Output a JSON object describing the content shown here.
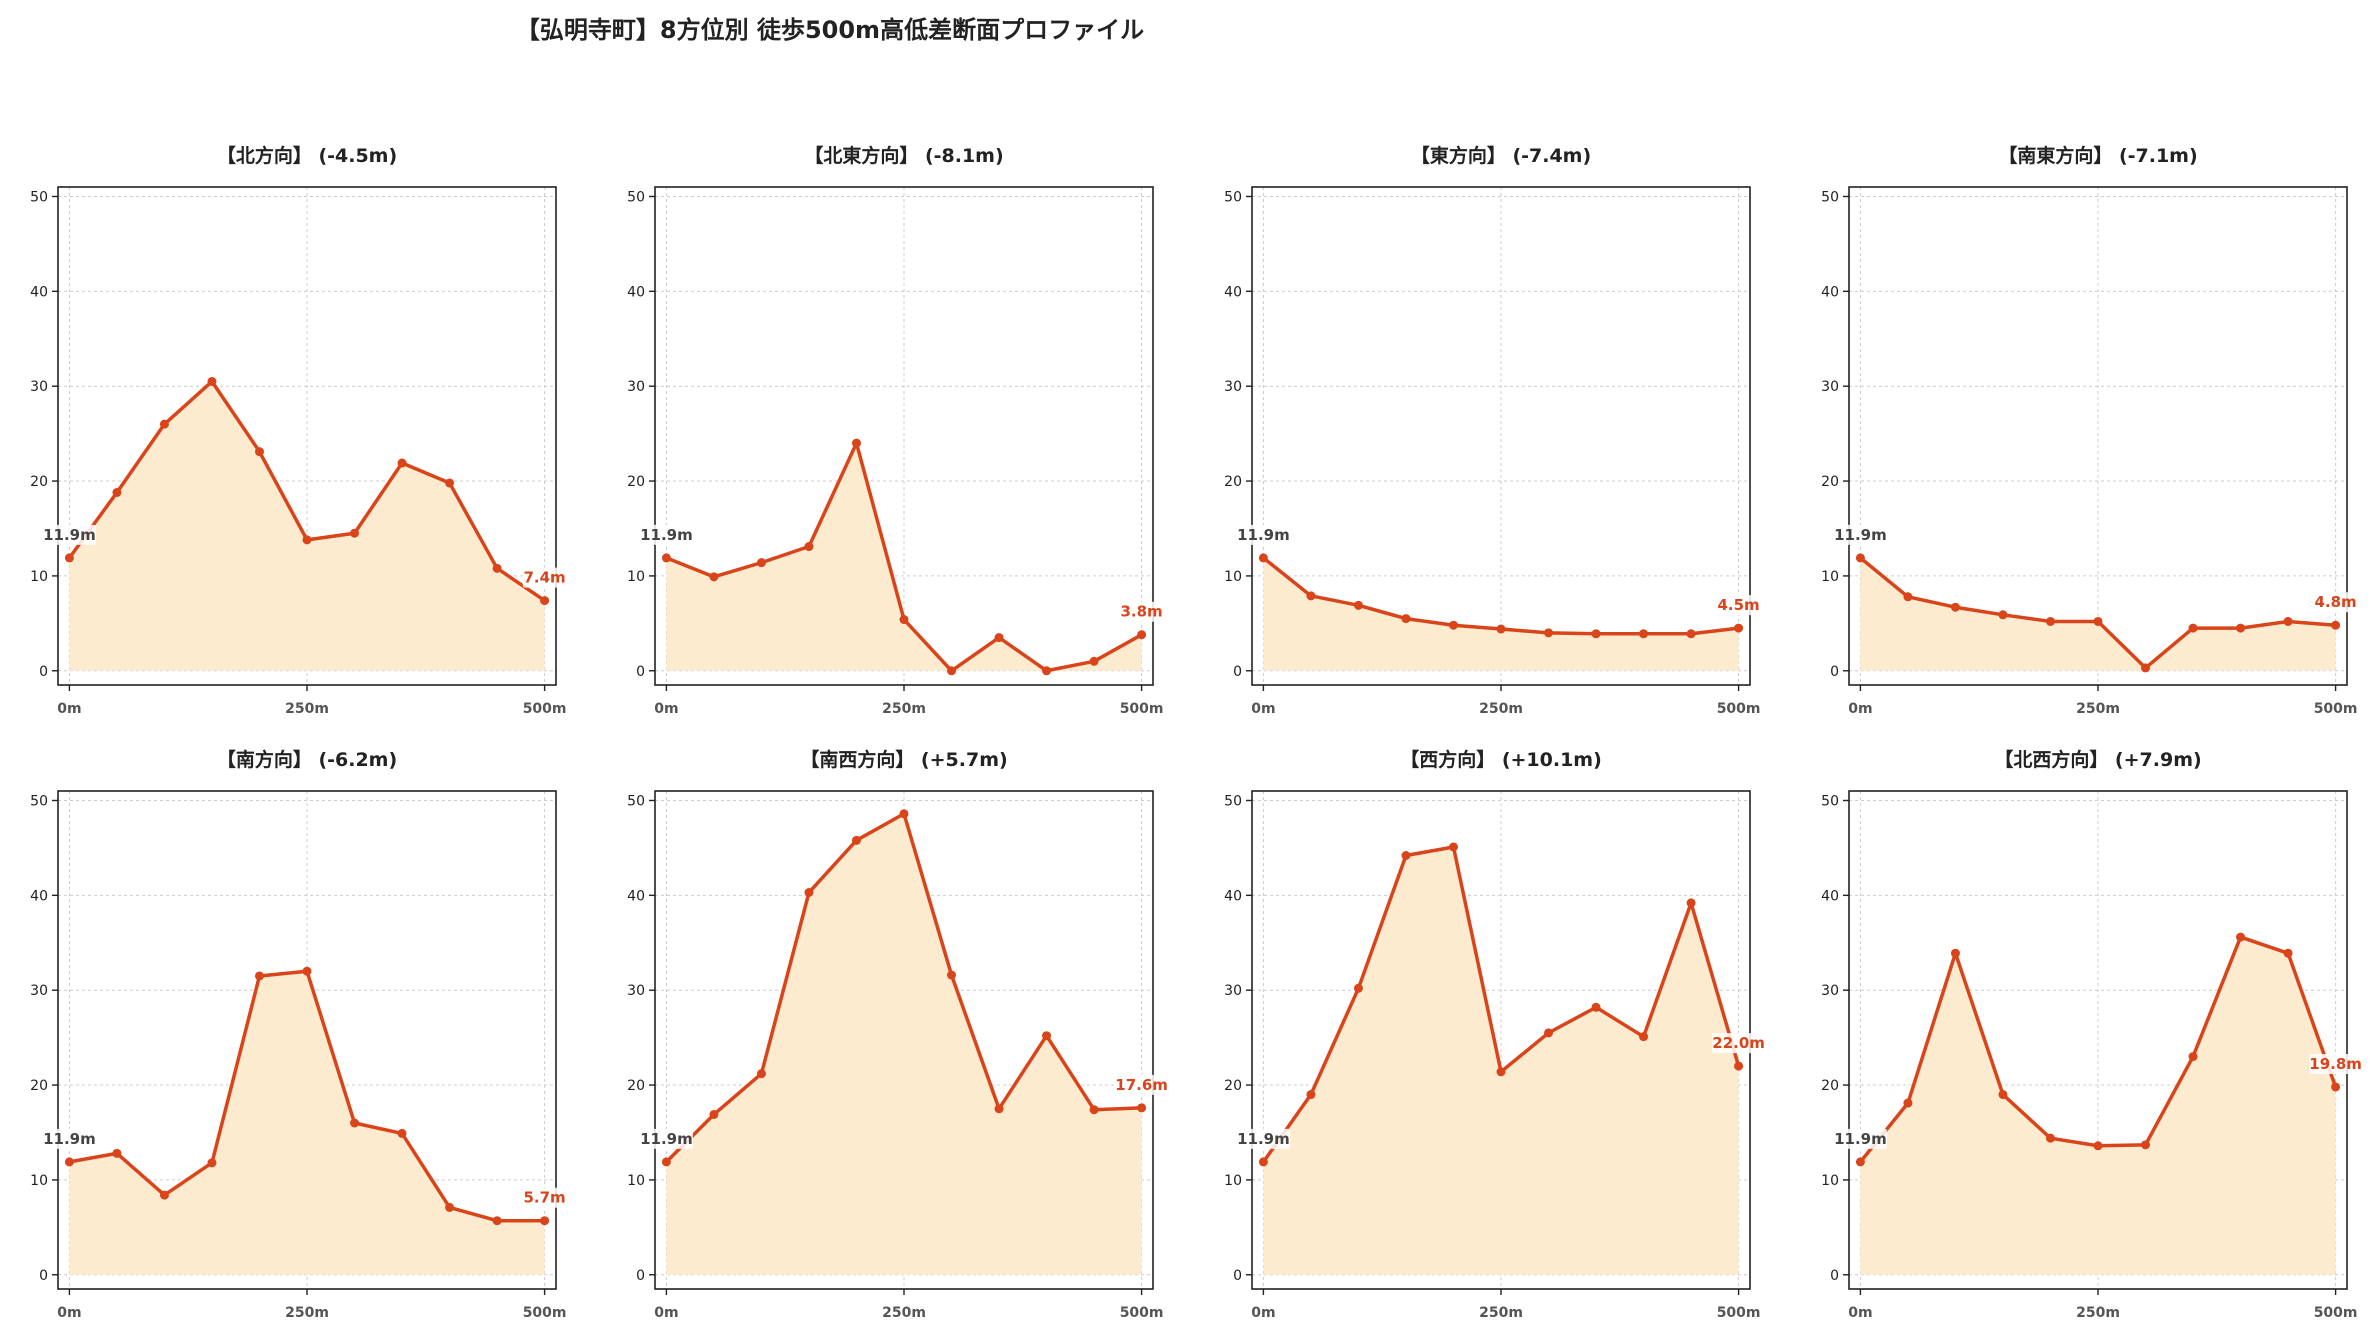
{
  "title": "【弘明寺町】8方位別 徒歩500m高低差断面プロファイル",
  "colors": {
    "line": "#d9441a",
    "fill": "#fdebd0",
    "grid": "#cccccc",
    "start_label": "#444444",
    "end_label": "#d9441a"
  },
  "chart_data": [
    {
      "type": "area",
      "title": "【北方向】 (-4.5m)",
      "x": [
        0,
        50,
        100,
        150,
        200,
        250,
        300,
        350,
        400,
        450,
        500
      ],
      "values": [
        11.9,
        18.8,
        26.0,
        30.5,
        23.1,
        13.8,
        14.5,
        21.9,
        19.8,
        10.8,
        7.4
      ],
      "xticks": [
        0,
        250,
        500
      ],
      "xtick_labels": [
        "0m",
        "250m",
        "500m"
      ],
      "yticks": [
        0,
        10,
        20,
        30,
        40,
        50
      ],
      "ylim": [
        -1.5,
        51
      ],
      "xlim": [
        -12,
        512
      ],
      "start_label": "11.9m",
      "end_label": "7.4m",
      "grid": true
    },
    {
      "type": "area",
      "title": "【北東方向】 (-8.1m)",
      "x": [
        0,
        50,
        100,
        150,
        200,
        250,
        300,
        350,
        400,
        450,
        500
      ],
      "values": [
        11.9,
        9.9,
        11.4,
        13.1,
        24.0,
        5.4,
        0.0,
        3.5,
        0.0,
        1.0,
        3.8
      ],
      "xticks": [
        0,
        250,
        500
      ],
      "xtick_labels": [
        "0m",
        "250m",
        "500m"
      ],
      "yticks": [
        0,
        10,
        20,
        30,
        40,
        50
      ],
      "ylim": [
        -1.5,
        51
      ],
      "xlim": [
        -12,
        512
      ],
      "start_label": "11.9m",
      "end_label": "3.8m",
      "grid": true
    },
    {
      "type": "area",
      "title": "【東方向】 (-7.4m)",
      "x": [
        0,
        50,
        100,
        150,
        200,
        250,
        300,
        350,
        400,
        450,
        500
      ],
      "values": [
        11.9,
        7.9,
        6.9,
        5.5,
        4.8,
        4.4,
        4.0,
        3.9,
        3.9,
        3.9,
        4.5
      ],
      "xticks": [
        0,
        250,
        500
      ],
      "xtick_labels": [
        "0m",
        "250m",
        "500m"
      ],
      "yticks": [
        0,
        10,
        20,
        30,
        40,
        50
      ],
      "ylim": [
        -1.5,
        51
      ],
      "xlim": [
        -12,
        512
      ],
      "start_label": "11.9m",
      "end_label": "4.5m",
      "grid": true
    },
    {
      "type": "area",
      "title": "【南東方向】 (-7.1m)",
      "x": [
        0,
        50,
        100,
        150,
        200,
        250,
        300,
        350,
        400,
        450,
        500
      ],
      "values": [
        11.9,
        7.8,
        6.7,
        5.9,
        5.2,
        5.2,
        0.3,
        4.5,
        4.5,
        5.2,
        4.8
      ],
      "xticks": [
        0,
        250,
        500
      ],
      "xtick_labels": [
        "0m",
        "250m",
        "500m"
      ],
      "yticks": [
        0,
        10,
        20,
        30,
        40,
        50
      ],
      "ylim": [
        -1.5,
        51
      ],
      "xlim": [
        -12,
        512
      ],
      "start_label": "11.9m",
      "end_label": "4.8m",
      "grid": true
    },
    {
      "type": "area",
      "title": "【南方向】 (-6.2m)",
      "x": [
        0,
        50,
        100,
        150,
        200,
        250,
        300,
        350,
        400,
        450,
        500
      ],
      "values": [
        11.9,
        12.8,
        8.4,
        11.8,
        31.5,
        32.0,
        16.0,
        14.9,
        7.1,
        5.7,
        5.7
      ],
      "xticks": [
        0,
        250,
        500
      ],
      "xtick_labels": [
        "0m",
        "250m",
        "500m"
      ],
      "yticks": [
        0,
        10,
        20,
        30,
        40,
        50
      ],
      "ylim": [
        -1.5,
        51
      ],
      "xlim": [
        -12,
        512
      ],
      "start_label": "11.9m",
      "end_label": "5.7m",
      "grid": true
    },
    {
      "type": "area",
      "title": "【南西方向】 (+5.7m)",
      "x": [
        0,
        50,
        100,
        150,
        200,
        250,
        300,
        350,
        400,
        450,
        500
      ],
      "values": [
        11.9,
        16.9,
        21.2,
        40.3,
        45.8,
        48.6,
        31.6,
        17.5,
        25.2,
        17.4,
        17.6
      ],
      "xticks": [
        0,
        250,
        500
      ],
      "xtick_labels": [
        "0m",
        "250m",
        "500m"
      ],
      "yticks": [
        0,
        10,
        20,
        30,
        40,
        50
      ],
      "ylim": [
        -1.5,
        51
      ],
      "xlim": [
        -12,
        512
      ],
      "start_label": "11.9m",
      "end_label": "17.6m",
      "grid": true
    },
    {
      "type": "area",
      "title": "【西方向】 (+10.1m)",
      "x": [
        0,
        50,
        100,
        150,
        200,
        250,
        300,
        350,
        400,
        450,
        500
      ],
      "values": [
        11.9,
        19.0,
        30.2,
        44.2,
        45.1,
        21.4,
        25.5,
        28.2,
        25.1,
        39.2,
        22.0
      ],
      "xticks": [
        0,
        250,
        500
      ],
      "xtick_labels": [
        "0m",
        "250m",
        "500m"
      ],
      "yticks": [
        0,
        10,
        20,
        30,
        40,
        50
      ],
      "ylim": [
        -1.5,
        51
      ],
      "xlim": [
        -12,
        512
      ],
      "start_label": "11.9m",
      "end_label": "22.0m",
      "grid": true
    },
    {
      "type": "area",
      "title": "【北西方向】 (+7.9m)",
      "x": [
        0,
        50,
        100,
        150,
        200,
        250,
        300,
        350,
        400,
        450,
        500
      ],
      "values": [
        11.9,
        18.1,
        33.9,
        19.0,
        14.4,
        13.6,
        13.7,
        23.0,
        35.6,
        33.9,
        19.8
      ],
      "xticks": [
        0,
        250,
        500
      ],
      "xtick_labels": [
        "0m",
        "250m",
        "500m"
      ],
      "yticks": [
        0,
        10,
        20,
        30,
        40,
        50
      ],
      "ylim": [
        -1.5,
        51
      ],
      "xlim": [
        -12,
        512
      ],
      "start_label": "11.9m",
      "end_label": "19.8m",
      "grid": true
    }
  ]
}
